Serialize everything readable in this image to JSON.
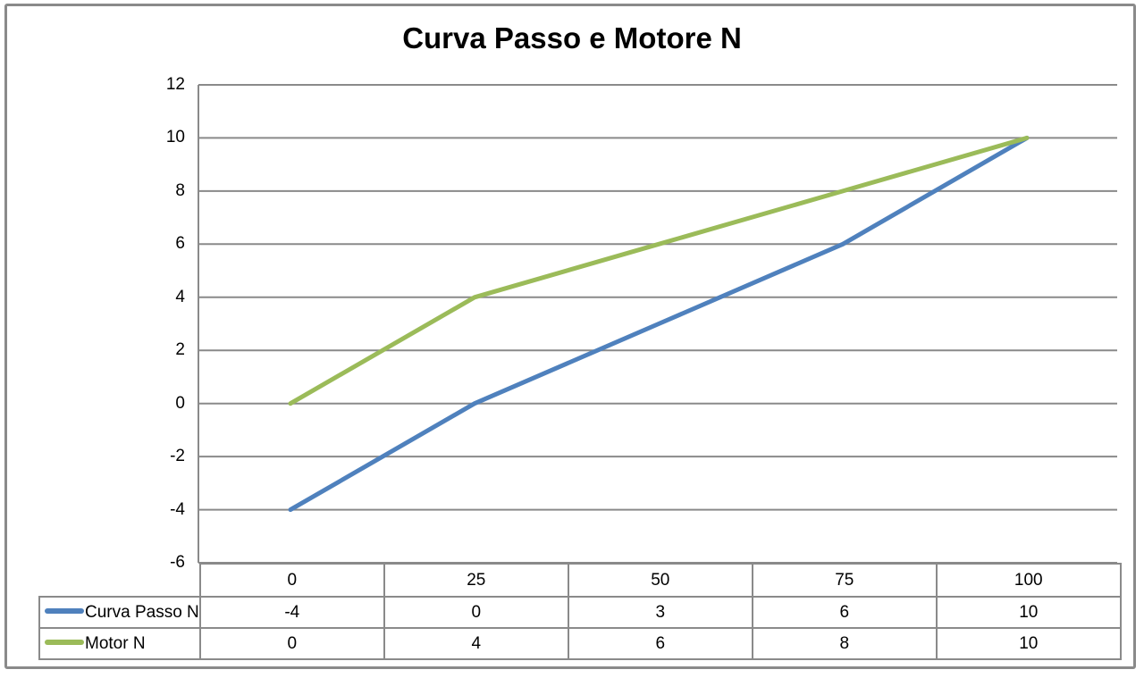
{
  "title": "Curva Passo e Motore N",
  "chart_data": {
    "type": "line",
    "title": "Curva Passo e Motore N",
    "categories": [
      "0",
      "25",
      "50",
      "75",
      "100"
    ],
    "series": [
      {
        "name": "Curva Passo N",
        "values": [
          -4,
          0,
          3,
          6,
          10
        ],
        "color": "#4F81BD"
      },
      {
        "name": "Motor N",
        "values": [
          0,
          4,
          6,
          8,
          10
        ],
        "color": "#9BBB59"
      }
    ],
    "y_axis": {
      "min": -6,
      "max": 12,
      "step": 2,
      "ticks": [
        12,
        10,
        8,
        6,
        4,
        2,
        0,
        -2,
        -4,
        -6
      ]
    },
    "x_axis": {
      "labels": [
        "0",
        "25",
        "50",
        "75",
        "100"
      ]
    },
    "grid": true,
    "legend_position": "bottom-table-left",
    "data_table_shown": true,
    "colors": {
      "gridline": "#8a8a8a",
      "axis": "#8a8a8a",
      "table_border": "#8a8a8a",
      "frame_border": "#8a8a8a",
      "text": "#000000",
      "background": "#ffffff"
    }
  }
}
